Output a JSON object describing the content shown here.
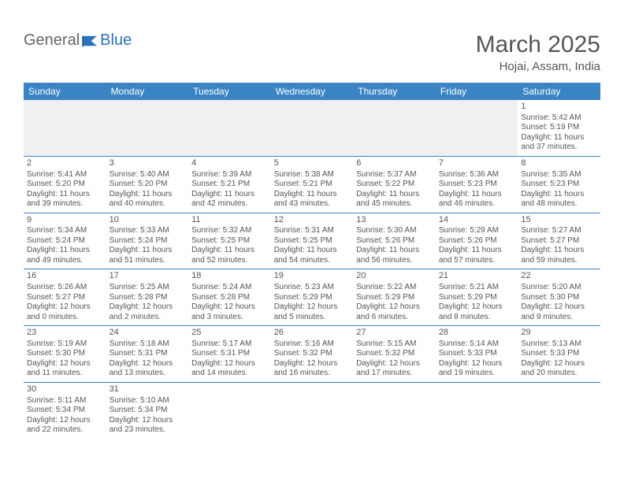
{
  "logo": {
    "general": "General",
    "blue": "Blue"
  },
  "title": "March 2025",
  "location": "Hojai, Assam, India",
  "header_bg": "#3b84c4",
  "header_fg": "#ffffff",
  "border_color": "#3b84c4",
  "text_color": "#555555",
  "empty_bg": "#f0f0f0",
  "day_labels": [
    "Sunday",
    "Monday",
    "Tuesday",
    "Wednesday",
    "Thursday",
    "Friday",
    "Saturday"
  ],
  "weeks": [
    [
      null,
      null,
      null,
      null,
      null,
      null,
      {
        "n": "1",
        "sr": "Sunrise: 5:42 AM",
        "ss": "Sunset: 5:19 PM",
        "d1": "Daylight: 11 hours",
        "d2": "and 37 minutes."
      }
    ],
    [
      {
        "n": "2",
        "sr": "Sunrise: 5:41 AM",
        "ss": "Sunset: 5:20 PM",
        "d1": "Daylight: 11 hours",
        "d2": "and 39 minutes."
      },
      {
        "n": "3",
        "sr": "Sunrise: 5:40 AM",
        "ss": "Sunset: 5:20 PM",
        "d1": "Daylight: 11 hours",
        "d2": "and 40 minutes."
      },
      {
        "n": "4",
        "sr": "Sunrise: 5:39 AM",
        "ss": "Sunset: 5:21 PM",
        "d1": "Daylight: 11 hours",
        "d2": "and 42 minutes."
      },
      {
        "n": "5",
        "sr": "Sunrise: 5:38 AM",
        "ss": "Sunset: 5:21 PM",
        "d1": "Daylight: 11 hours",
        "d2": "and 43 minutes."
      },
      {
        "n": "6",
        "sr": "Sunrise: 5:37 AM",
        "ss": "Sunset: 5:22 PM",
        "d1": "Daylight: 11 hours",
        "d2": "and 45 minutes."
      },
      {
        "n": "7",
        "sr": "Sunrise: 5:36 AM",
        "ss": "Sunset: 5:23 PM",
        "d1": "Daylight: 11 hours",
        "d2": "and 46 minutes."
      },
      {
        "n": "8",
        "sr": "Sunrise: 5:35 AM",
        "ss": "Sunset: 5:23 PM",
        "d1": "Daylight: 11 hours",
        "d2": "and 48 minutes."
      }
    ],
    [
      {
        "n": "9",
        "sr": "Sunrise: 5:34 AM",
        "ss": "Sunset: 5:24 PM",
        "d1": "Daylight: 11 hours",
        "d2": "and 49 minutes."
      },
      {
        "n": "10",
        "sr": "Sunrise: 5:33 AM",
        "ss": "Sunset: 5:24 PM",
        "d1": "Daylight: 11 hours",
        "d2": "and 51 minutes."
      },
      {
        "n": "11",
        "sr": "Sunrise: 5:32 AM",
        "ss": "Sunset: 5:25 PM",
        "d1": "Daylight: 11 hours",
        "d2": "and 52 minutes."
      },
      {
        "n": "12",
        "sr": "Sunrise: 5:31 AM",
        "ss": "Sunset: 5:25 PM",
        "d1": "Daylight: 11 hours",
        "d2": "and 54 minutes."
      },
      {
        "n": "13",
        "sr": "Sunrise: 5:30 AM",
        "ss": "Sunset: 5:26 PM",
        "d1": "Daylight: 11 hours",
        "d2": "and 56 minutes."
      },
      {
        "n": "14",
        "sr": "Sunrise: 5:29 AM",
        "ss": "Sunset: 5:26 PM",
        "d1": "Daylight: 11 hours",
        "d2": "and 57 minutes."
      },
      {
        "n": "15",
        "sr": "Sunrise: 5:27 AM",
        "ss": "Sunset: 5:27 PM",
        "d1": "Daylight: 11 hours",
        "d2": "and 59 minutes."
      }
    ],
    [
      {
        "n": "16",
        "sr": "Sunrise: 5:26 AM",
        "ss": "Sunset: 5:27 PM",
        "d1": "Daylight: 12 hours",
        "d2": "and 0 minutes."
      },
      {
        "n": "17",
        "sr": "Sunrise: 5:25 AM",
        "ss": "Sunset: 5:28 PM",
        "d1": "Daylight: 12 hours",
        "d2": "and 2 minutes."
      },
      {
        "n": "18",
        "sr": "Sunrise: 5:24 AM",
        "ss": "Sunset: 5:28 PM",
        "d1": "Daylight: 12 hours",
        "d2": "and 3 minutes."
      },
      {
        "n": "19",
        "sr": "Sunrise: 5:23 AM",
        "ss": "Sunset: 5:29 PM",
        "d1": "Daylight: 12 hours",
        "d2": "and 5 minutes."
      },
      {
        "n": "20",
        "sr": "Sunrise: 5:22 AM",
        "ss": "Sunset: 5:29 PM",
        "d1": "Daylight: 12 hours",
        "d2": "and 6 minutes."
      },
      {
        "n": "21",
        "sr": "Sunrise: 5:21 AM",
        "ss": "Sunset: 5:29 PM",
        "d1": "Daylight: 12 hours",
        "d2": "and 8 minutes."
      },
      {
        "n": "22",
        "sr": "Sunrise: 5:20 AM",
        "ss": "Sunset: 5:30 PM",
        "d1": "Daylight: 12 hours",
        "d2": "and 9 minutes."
      }
    ],
    [
      {
        "n": "23",
        "sr": "Sunrise: 5:19 AM",
        "ss": "Sunset: 5:30 PM",
        "d1": "Daylight: 12 hours",
        "d2": "and 11 minutes."
      },
      {
        "n": "24",
        "sr": "Sunrise: 5:18 AM",
        "ss": "Sunset: 5:31 PM",
        "d1": "Daylight: 12 hours",
        "d2": "and 13 minutes."
      },
      {
        "n": "25",
        "sr": "Sunrise: 5:17 AM",
        "ss": "Sunset: 5:31 PM",
        "d1": "Daylight: 12 hours",
        "d2": "and 14 minutes."
      },
      {
        "n": "26",
        "sr": "Sunrise: 5:16 AM",
        "ss": "Sunset: 5:32 PM",
        "d1": "Daylight: 12 hours",
        "d2": "and 16 minutes."
      },
      {
        "n": "27",
        "sr": "Sunrise: 5:15 AM",
        "ss": "Sunset: 5:32 PM",
        "d1": "Daylight: 12 hours",
        "d2": "and 17 minutes."
      },
      {
        "n": "28",
        "sr": "Sunrise: 5:14 AM",
        "ss": "Sunset: 5:33 PM",
        "d1": "Daylight: 12 hours",
        "d2": "and 19 minutes."
      },
      {
        "n": "29",
        "sr": "Sunrise: 5:13 AM",
        "ss": "Sunset: 5:33 PM",
        "d1": "Daylight: 12 hours",
        "d2": "and 20 minutes."
      }
    ],
    [
      {
        "n": "30",
        "sr": "Sunrise: 5:11 AM",
        "ss": "Sunset: 5:34 PM",
        "d1": "Daylight: 12 hours",
        "d2": "and 22 minutes."
      },
      {
        "n": "31",
        "sr": "Sunrise: 5:10 AM",
        "ss": "Sunset: 5:34 PM",
        "d1": "Daylight: 12 hours",
        "d2": "and 23 minutes."
      },
      null,
      null,
      null,
      null,
      null
    ]
  ]
}
